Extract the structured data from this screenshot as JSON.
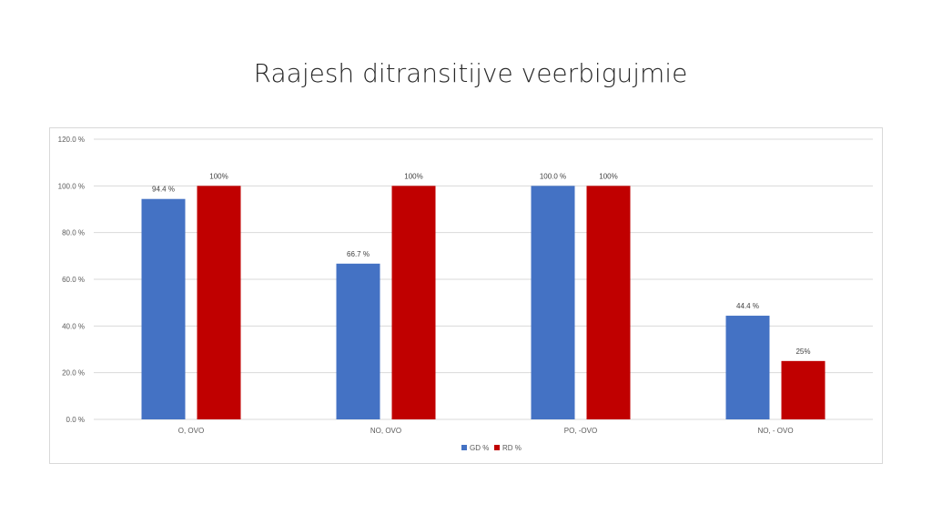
{
  "slide": {
    "title": "Raajesh ditransitijve veerbigujmie"
  },
  "chart_data": {
    "type": "bar",
    "categories": [
      "O, OVO",
      "NO, OVO",
      "PO, -OVO",
      "NO, - OVO"
    ],
    "series": [
      {
        "name": "GD %",
        "color": "#4472C4",
        "values": [
          94.4,
          66.7,
          100.0,
          44.4
        ],
        "data_labels": [
          "94.4 %",
          "66.7 %",
          "100.0 %",
          "44.4 %"
        ]
      },
      {
        "name": "RD %",
        "color": "#C00000",
        "values": [
          100,
          100,
          100,
          25
        ],
        "data_labels": [
          "100%",
          "100%",
          "100%",
          "25%"
        ]
      }
    ],
    "ylim": [
      0,
      120
    ],
    "yticks": [
      0,
      20,
      40,
      60,
      80,
      100,
      120
    ],
    "ytick_labels": [
      "0.0 %",
      "20.0 %",
      "40.0 %",
      "60.0 %",
      "80.0 %",
      "100.0 %",
      "120.0 %"
    ],
    "grid": true,
    "legend_position": "bottom",
    "xlabel": "",
    "ylabel": ""
  }
}
